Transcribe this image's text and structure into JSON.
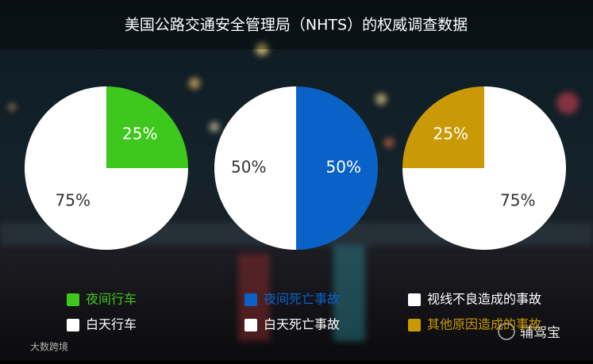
{
  "title": "美国公路交通安全管理局（NHTS）的权威调查数据",
  "watermarks": [
    "大数跨境",
    "辅驾宝"
  ],
  "chart_data": [
    {
      "type": "pie",
      "categories": [
        "夜间行车",
        "白天行车"
      ],
      "values": [
        25,
        75
      ],
      "value_labels": [
        "25%",
        "75%"
      ],
      "colors": [
        "#3ec71c",
        "#ffffff"
      ]
    },
    {
      "type": "pie",
      "categories": [
        "夜间死亡事故",
        "白天死亡事故"
      ],
      "values": [
        50,
        50
      ],
      "value_labels": [
        "50%",
        "50%"
      ],
      "colors": [
        "#0a62c9",
        "#ffffff"
      ]
    },
    {
      "type": "pie",
      "categories": [
        "视线不良造成的事故",
        "其他原因造成的事故"
      ],
      "values": [
        75,
        25
      ],
      "value_labels": [
        "75%",
        "25%"
      ],
      "colors": [
        "#ffffff",
        "#c99a06"
      ]
    }
  ]
}
